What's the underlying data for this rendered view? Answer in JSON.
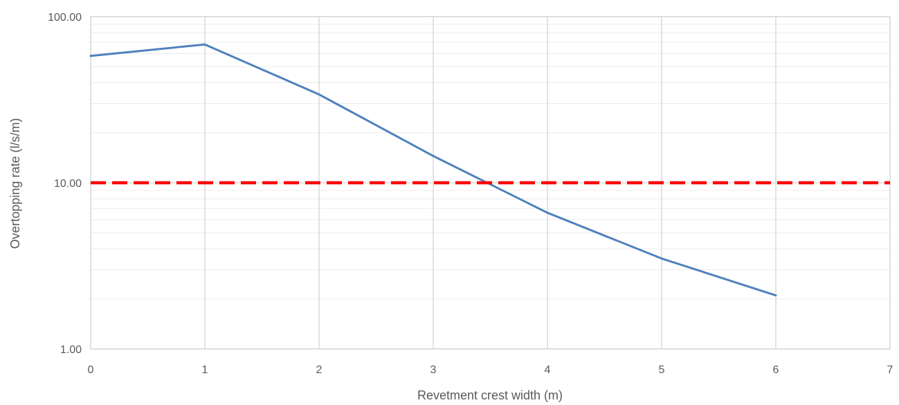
{
  "chart_data": {
    "type": "line",
    "xlabel": "Revetment crest width (m)",
    "ylabel": "Overtopping rate (l/s/m)",
    "x_ticks": [
      "0",
      "1",
      "2",
      "3",
      "4",
      "5",
      "6",
      "7"
    ],
    "y_ticks": [
      "1.00",
      "10.00",
      "100.00"
    ],
    "xlim": [
      0,
      7
    ],
    "ylim": [
      1,
      100
    ],
    "y_scale": "log",
    "grid": true,
    "series": [
      {
        "x": [
          0,
          1,
          2,
          3,
          4,
          5,
          6
        ],
        "y": [
          58,
          68,
          34,
          14.5,
          6.6,
          3.5,
          2.1
        ],
        "color": "#4f81bd",
        "style": "solid"
      },
      {
        "x": [
          0,
          7
        ],
        "y": [
          10,
          10
        ],
        "color": "#ff0000",
        "style": "dashed"
      }
    ]
  }
}
